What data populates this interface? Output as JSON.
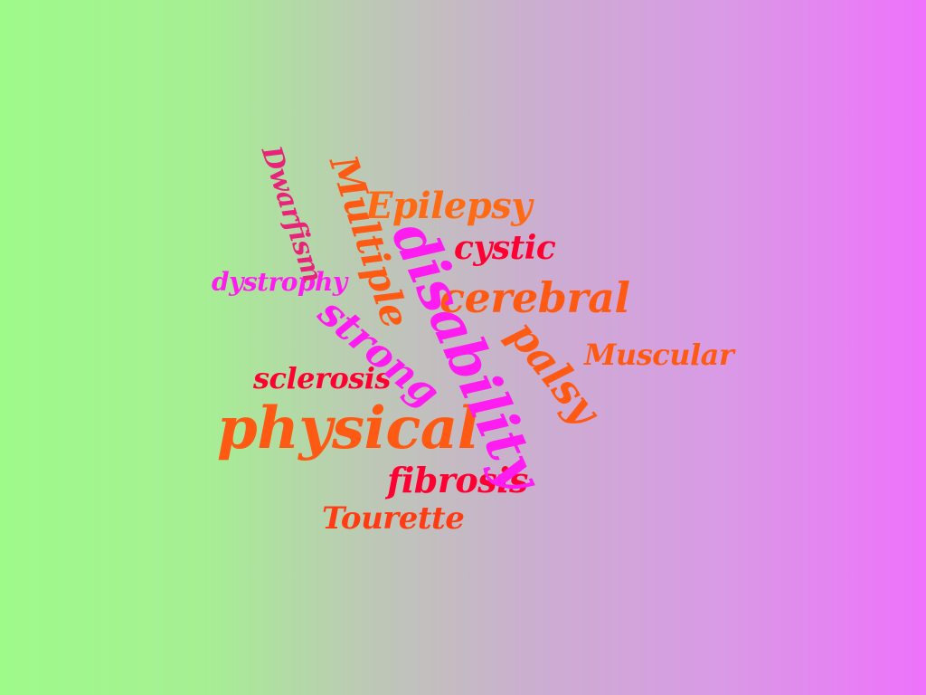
{
  "background": {
    "gradient_from": "#9efb8a",
    "gradient_to": "#ee72fb",
    "direction": "left-to-right"
  },
  "words": [
    {
      "id": "disability",
      "text": "disability",
      "color": "#ff1cf0",
      "orientation": "vertical-rotated"
    },
    {
      "id": "physical",
      "text": "physical",
      "color": "#ff5a14",
      "orientation": "horizontal"
    },
    {
      "id": "cerebral",
      "text": "cerebral",
      "color": "#ff5a14",
      "orientation": "horizontal"
    },
    {
      "id": "epilepsy",
      "text": "Epilepsy",
      "color": "#ff6a14",
      "orientation": "horizontal"
    },
    {
      "id": "strong",
      "text": "strong",
      "color": "#ff1cf0",
      "orientation": "rotated"
    },
    {
      "id": "palsy",
      "text": "palsy",
      "color": "#ff5a14",
      "orientation": "rotated"
    },
    {
      "id": "multiple",
      "text": "Multiple",
      "color": "#ff5a14",
      "orientation": "vertical-rotated"
    },
    {
      "id": "cystic",
      "text": "cystic",
      "color": "#ff0033",
      "orientation": "horizontal"
    },
    {
      "id": "fibrosis",
      "text": "fibrosis",
      "color": "#ff0033",
      "orientation": "horizontal"
    },
    {
      "id": "sclerosis",
      "text": "sclerosis",
      "color": "#ff0033",
      "orientation": "horizontal"
    },
    {
      "id": "muscular",
      "text": "Muscular",
      "color": "#ff5a14",
      "orientation": "horizontal"
    },
    {
      "id": "tourette",
      "text": "Tourette",
      "color": "#ff3c14",
      "orientation": "horizontal"
    },
    {
      "id": "dwarfism",
      "text": "Dwarfism",
      "color": "#e8247a",
      "orientation": "vertical-rotated"
    },
    {
      "id": "dystrophy",
      "text": "dystrophy",
      "color": "#ff1cf0",
      "orientation": "horizontal"
    }
  ]
}
